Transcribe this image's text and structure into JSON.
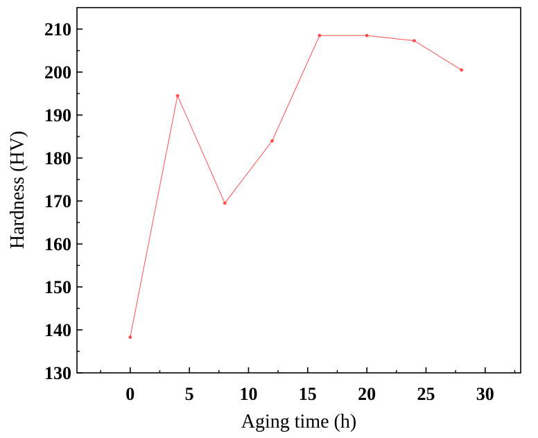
{
  "chart_data": {
    "type": "line",
    "title": "",
    "xlabel": "Aging time (h)",
    "ylabel": "Hardness (HV)",
    "xlim": [
      -4.5,
      33
    ],
    "ylim": [
      130,
      215
    ],
    "xticks": [
      0,
      5,
      10,
      15,
      20,
      25,
      30
    ],
    "yticks": [
      130,
      140,
      150,
      160,
      170,
      180,
      190,
      200,
      210
    ],
    "grid": false,
    "legend": "none",
    "series": [
      {
        "color": "#ff4d4d",
        "marker": "circle",
        "x": [
          0,
          4,
          8,
          12,
          16,
          20,
          24,
          28
        ],
        "y": [
          138.3,
          194.5,
          169.5,
          184.0,
          208.5,
          208.5,
          207.3,
          200.5
        ]
      }
    ]
  }
}
